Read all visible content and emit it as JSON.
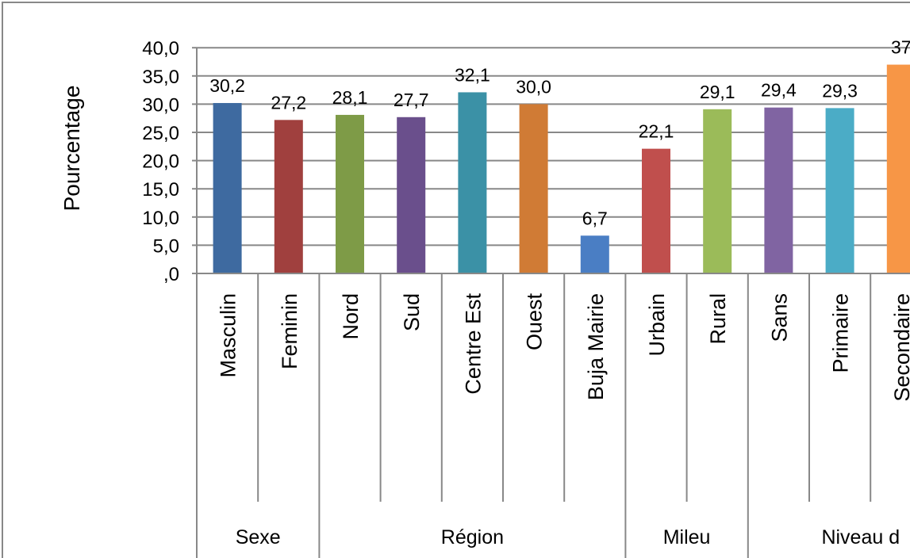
{
  "chart_data": {
    "type": "bar",
    "title": "",
    "xlabel": "",
    "ylabel": "Pourcentage",
    "ylim": [
      0,
      40
    ],
    "yticks": [
      ",0",
      "5,0",
      "10,0",
      "15,0",
      "20,0",
      "25,0",
      "30,0",
      "35,0",
      "40,0"
    ],
    "grid": true,
    "legend": "none",
    "categories": [
      "Masculin",
      "Feminin",
      "Nord",
      "Sud",
      "Centre Est",
      "Ouest",
      "Buja Mairie",
      "Urbain",
      "Rural",
      "Sans",
      "Primaire",
      "Secondaire"
    ],
    "values": [
      30.2,
      27.2,
      28.1,
      27.7,
      32.1,
      30.0,
      6.7,
      22.1,
      29.1,
      29.4,
      29.3,
      37.0
    ],
    "value_labels": [
      "30,2",
      "27,2",
      "28,1",
      "27,7",
      "32,1",
      "30,0",
      "6,7",
      "22,1",
      "29,1",
      "29,4",
      "29,3",
      "37"
    ],
    "colors": [
      "#3E6AA0",
      "#A0403E",
      "#7E9B47",
      "#6A4F8C",
      "#3B91A6",
      "#D07B35",
      "#4A7EC4",
      "#C04F4D",
      "#9BBB59",
      "#8064A2",
      "#4BACC6",
      "#F79646"
    ],
    "groups": [
      {
        "label": "Sexe",
        "count": 2
      },
      {
        "label": "Région",
        "count": 5
      },
      {
        "label": "Mileu",
        "count": 2
      },
      {
        "label": "Niveau d",
        "count": 3
      }
    ]
  }
}
